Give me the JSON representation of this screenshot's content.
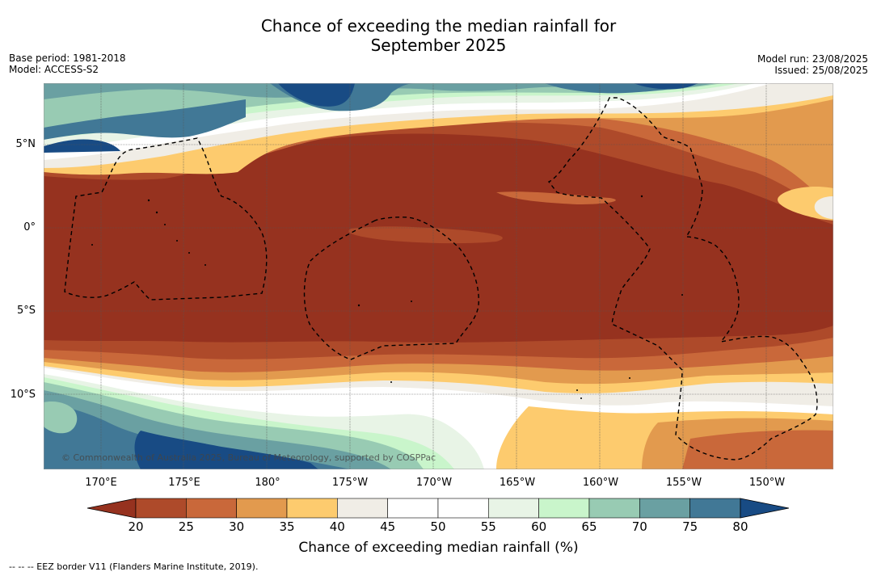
{
  "title_line1": "Chance of exceeding the median rainfall for",
  "title_line2": "September 2025",
  "meta_left": [
    "Base period: 1981-2018",
    "Model: ACCESS-S2"
  ],
  "meta_right": [
    "Model run: 23/08/2025",
    "Issued: 25/08/2025"
  ],
  "lat_labels": [
    "5°N",
    "0°",
    "5°S",
    "10°S"
  ],
  "lon_labels": [
    "170°E",
    "175°E",
    "180°",
    "175°W",
    "170°W",
    "165°W",
    "160°W",
    "155°W",
    "150°W"
  ],
  "credit": "© Commonwealth of Australia 2025, Bureau of Meteorology, supported by COSPPac",
  "colorbar": {
    "ticks": [
      "20",
      "25",
      "30",
      "35",
      "40",
      "45",
      "50",
      "55",
      "60",
      "65",
      "70",
      "75",
      "80"
    ],
    "label": "Chance of exceeding median rainfall (%)",
    "colors": [
      "#96321f",
      "#ae4a2a",
      "#c9683a",
      "#e29a4e",
      "#fdcb6e",
      "#f0ede6",
      "#ffffff",
      "#ffffff",
      "#e8f4e6",
      "#c9f5cb",
      "#98cbb3",
      "#6aa0a2",
      "#417896",
      "#184b84"
    ]
  },
  "footnote": "--  --  -- EEZ border V11 (Flanders Marine Institute, 2019)."
}
